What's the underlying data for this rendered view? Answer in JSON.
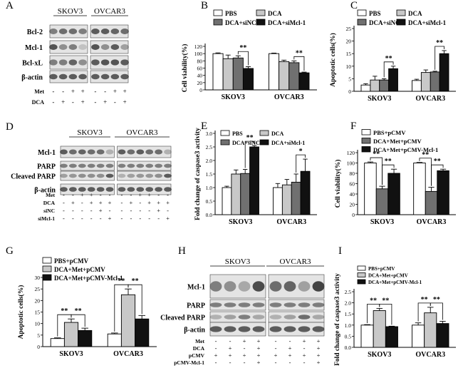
{
  "colors": {
    "pbs": "#ffffff",
    "dca": "#c8c8c8",
    "sinc": "#707070",
    "simcl": "#111111",
    "blot_bg": "#e4e4e4",
    "band": "#3a3a3a"
  },
  "chart_data": [
    {
      "id": "B",
      "panel_label": "B",
      "type": "bar",
      "ylabel": "Cell viability(%)",
      "yticks": [
        0,
        20,
        40,
        60,
        80,
        100,
        120
      ],
      "ylim": [
        0,
        120
      ],
      "categories": [
        "SKOV3",
        "OVCAR3"
      ],
      "legend": [
        "PBS",
        "DCA",
        "DCA+siNC",
        "DCA+siMcl-1"
      ],
      "series": [
        {
          "name": "PBS",
          "color_key": "pbs",
          "values": [
            100,
            100
          ],
          "errors": [
            2,
            1.5
          ]
        },
        {
          "name": "DCA",
          "color_key": "dca",
          "values": [
            86,
            78
          ],
          "errors": [
            10,
            4
          ]
        },
        {
          "name": "DCA+siNC",
          "color_key": "sinc",
          "values": [
            88,
            75
          ],
          "errors": [
            6,
            5
          ]
        },
        {
          "name": "DCA+siMcl-1",
          "color_key": "simcl",
          "values": [
            59,
            47
          ],
          "errors": [
            5,
            2
          ]
        }
      ],
      "sig": [
        {
          "cat": 0,
          "from": 2,
          "to": 3,
          "label": "**"
        },
        {
          "cat": 1,
          "from": 2,
          "to": 3,
          "label": "**"
        }
      ]
    },
    {
      "id": "C",
      "panel_label": "C",
      "type": "bar",
      "ylabel": "Apoptotic cells(%)",
      "yticks": [
        0,
        5,
        10,
        15,
        20,
        25
      ],
      "ylim": [
        0,
        25
      ],
      "categories": [
        "SKOV3",
        "OVCAR3"
      ],
      "legend": [
        "PBS",
        "DCA",
        "DCA+siNC",
        "DCA+siMcl-1"
      ],
      "series": [
        {
          "name": "PBS",
          "color_key": "pbs",
          "values": [
            2.5,
            4.3
          ],
          "errors": [
            0.5,
            0.5
          ]
        },
        {
          "name": "DCA",
          "color_key": "dca",
          "values": [
            4.5,
            7.5
          ],
          "errors": [
            1.5,
            1
          ]
        },
        {
          "name": "DCA+siNC",
          "color_key": "sinc",
          "values": [
            4.5,
            7.7
          ],
          "errors": [
            0.5,
            0.3
          ]
        },
        {
          "name": "DCA+siMcl-1",
          "color_key": "simcl",
          "values": [
            9,
            15
          ],
          "errors": [
            1,
            1.2
          ]
        }
      ],
      "sig": [
        {
          "cat": 0,
          "from": 2,
          "to": 3,
          "label": "**"
        },
        {
          "cat": 1,
          "from": 2,
          "to": 3,
          "label": "**"
        }
      ]
    },
    {
      "id": "E",
      "panel_label": "E",
      "type": "bar",
      "ylabel": "Fold change of caspase3 activity",
      "yticks": [
        0.0,
        0.5,
        1.0,
        1.5,
        2.0,
        2.5,
        3.0
      ],
      "ylim": [
        0,
        3
      ],
      "categories": [
        "SKOV3",
        "OVCAR3"
      ],
      "legend": [
        "PBS",
        "DCA",
        "DCA+siNC",
        "DCA+siMcl-1"
      ],
      "series": [
        {
          "name": "PBS",
          "color_key": "pbs",
          "values": [
            1.0,
            1.0
          ],
          "errors": [
            0.05,
            0.15
          ]
        },
        {
          "name": "DCA",
          "color_key": "dca",
          "values": [
            1.5,
            1.1
          ],
          "errors": [
            0.15,
            0.2
          ]
        },
        {
          "name": "DCA+siNC",
          "color_key": "sinc",
          "values": [
            1.52,
            1.2
          ],
          "errors": [
            0.15,
            0.3
          ]
        },
        {
          "name": "DCA+siMcl-1",
          "color_key": "simcl",
          "values": [
            2.5,
            1.6
          ],
          "errors": [
            0.05,
            0.45
          ]
        }
      ],
      "sig": [
        {
          "cat": 0,
          "from": 2,
          "to": 3,
          "label": "**"
        },
        {
          "cat": 1,
          "from": 2,
          "to": 3,
          "label": "*"
        }
      ]
    },
    {
      "id": "F",
      "panel_label": "F",
      "type": "bar",
      "ylabel": "Cell viability(%)",
      "yticks": [
        0,
        20,
        40,
        60,
        80,
        100,
        120
      ],
      "ylim": [
        0,
        120
      ],
      "categories": [
        "SKOV3",
        "OVCAR3"
      ],
      "legend": [
        "PBS+pCMV",
        "DCA+Met+pCMV",
        "DCA+Met+pCMV-Mcl-1"
      ],
      "series": [
        {
          "name": "PBS+pCMV",
          "color_key": "pbs",
          "values": [
            100,
            100
          ],
          "errors": [
            2,
            1
          ]
        },
        {
          "name": "DCA+Met+pCMV",
          "color_key": "sinc",
          "values": [
            50,
            45
          ],
          "errors": [
            5,
            8
          ]
        },
        {
          "name": "DCA+Met+pCMV-Mcl-1",
          "color_key": "simcl",
          "values": [
            80,
            85
          ],
          "errors": [
            8,
            3
          ]
        }
      ],
      "sig": [
        {
          "cat": 0,
          "from": 0,
          "to": 1,
          "label": "**"
        },
        {
          "cat": 0,
          "from": 1,
          "to": 2,
          "label": "**"
        },
        {
          "cat": 1,
          "from": 0,
          "to": 1,
          "label": "**"
        },
        {
          "cat": 1,
          "from": 1,
          "to": 2,
          "label": "**"
        }
      ]
    },
    {
      "id": "G",
      "panel_label": "G",
      "type": "bar",
      "ylabel": "Apoptotic cells(%)",
      "yticks": [
        0,
        5,
        10,
        15,
        20,
        25,
        30
      ],
      "ylim": [
        0,
        30
      ],
      "categories": [
        "SKOV3",
        "OVCAR3"
      ],
      "legend": [
        "PBS+pCMV",
        "DCA+Met+pCMV",
        "DCA+Met+pCMV-Mcl-1"
      ],
      "series": [
        {
          "name": "PBS+pCMV",
          "color_key": "pbs",
          "values": [
            3.5,
            5.5
          ],
          "errors": [
            0.3,
            0.4
          ]
        },
        {
          "name": "DCA+Met+pCMV",
          "color_key": "dca",
          "values": [
            10.5,
            22.5
          ],
          "errors": [
            1.5,
            2.5
          ]
        },
        {
          "name": "DCA+Met+pCMV-Mcl-1",
          "color_key": "simcl",
          "values": [
            7,
            12
          ],
          "errors": [
            1,
            1.5
          ]
        }
      ],
      "sig": [
        {
          "cat": 0,
          "from": 0,
          "to": 1,
          "label": "**"
        },
        {
          "cat": 0,
          "from": 1,
          "to": 2,
          "label": "**"
        },
        {
          "cat": 1,
          "from": 0,
          "to": 1,
          "label": "**"
        },
        {
          "cat": 1,
          "from": 1,
          "to": 2,
          "label": "**"
        }
      ]
    },
    {
      "id": "I",
      "panel_label": "I",
      "type": "bar",
      "ylabel": "Fold change of caspase3 activity",
      "yticks": [
        0.0,
        0.5,
        1.0,
        1.5,
        2.0,
        2.5
      ],
      "ylim": [
        0,
        2.5
      ],
      "categories": [
        "SKOV3",
        "OVCAR3"
      ],
      "legend": [
        "PBS+pCMV",
        "DCA+Met+pCMV",
        "DCA+Met+pCMV-Mcl-1"
      ],
      "series": [
        {
          "name": "PBS+pCMV",
          "color_key": "pbs",
          "values": [
            1.0,
            1.0
          ],
          "errors": [
            0.02,
            0.1
          ]
        },
        {
          "name": "DCA+Met+pCMV",
          "color_key": "dca",
          "values": [
            1.65,
            1.55
          ],
          "errors": [
            0.1,
            0.25
          ]
        },
        {
          "name": "DCA+Met+pCMV-Mcl-1",
          "color_key": "simcl",
          "values": [
            0.93,
            1.07
          ],
          "errors": [
            0.02,
            0.1
          ]
        }
      ],
      "sig": [
        {
          "cat": 0,
          "from": 0,
          "to": 1,
          "label": "**"
        },
        {
          "cat": 0,
          "from": 1,
          "to": 2,
          "label": "**"
        },
        {
          "cat": 1,
          "from": 0,
          "to": 1,
          "label": "**"
        },
        {
          "cat": 1,
          "from": 1,
          "to": 2,
          "label": "**"
        }
      ]
    }
  ],
  "blots": [
    {
      "id": "A",
      "panel_label": "A",
      "cell_lines": [
        "SKOV3",
        "OVCAR3"
      ],
      "rows": [
        "Bcl-2",
        "Mcl-1",
        "Bcl-xL",
        "β-actin"
      ],
      "conditions": [
        {
          "label": "Met",
          "signs": [
            "-",
            "-",
            "+",
            "+",
            "-",
            "-",
            "+",
            "+"
          ]
        },
        {
          "label": "DCA",
          "signs": [
            "-",
            "+",
            "-",
            "+",
            "-",
            "+",
            "-",
            "+"
          ]
        }
      ]
    },
    {
      "id": "D",
      "panel_label": "D",
      "cell_lines": [
        "SKOV3",
        "OVCAR3"
      ],
      "rows": [
        "Mcl-1",
        "PARP",
        "Cleaved PARP",
        "β-actin"
      ],
      "conditions": [
        {
          "label": "Met",
          "signs": [
            "-",
            "-",
            "+",
            "+",
            "-",
            "-",
            "-",
            "-",
            "+",
            "+",
            "-",
            "-"
          ]
        },
        {
          "label": "DCA",
          "signs": [
            "-",
            "+",
            "-",
            "+",
            "+",
            "+",
            "-",
            "+",
            "-",
            "+",
            "+",
            "+"
          ]
        },
        {
          "label": "siNC",
          "signs": [
            "-",
            "-",
            "-",
            "-",
            "+",
            "-",
            "-",
            "-",
            "-",
            "-",
            "+",
            "-"
          ]
        },
        {
          "label": "siMcl-1",
          "signs": [
            "-",
            "-",
            "-",
            "-",
            "-",
            "+",
            "-",
            "-",
            "-",
            "-",
            "-",
            "+"
          ]
        }
      ]
    },
    {
      "id": "H",
      "panel_label": "H",
      "cell_lines": [
        "SKOV3",
        "OVCAR3"
      ],
      "rows": [
        "Mcl-1",
        "PARP",
        "Cleaved PARP",
        "β-actin"
      ],
      "conditions": [
        {
          "label": "Met",
          "signs": [
            "-",
            "-",
            "+",
            "+",
            "-",
            "-",
            "+",
            "+"
          ]
        },
        {
          "label": "DCA",
          "signs": [
            "-",
            "+",
            "-",
            "+",
            "-",
            "+",
            "-",
            "+"
          ]
        },
        {
          "label": "pCMV",
          "signs": [
            "+",
            "+",
            "+",
            "+",
            "+",
            "+",
            "+",
            "+"
          ]
        },
        {
          "label": "pCMV-Mcl-1",
          "signs": [
            "-",
            "-",
            "-",
            "+",
            "-",
            "-",
            "-",
            "+"
          ]
        }
      ]
    }
  ]
}
